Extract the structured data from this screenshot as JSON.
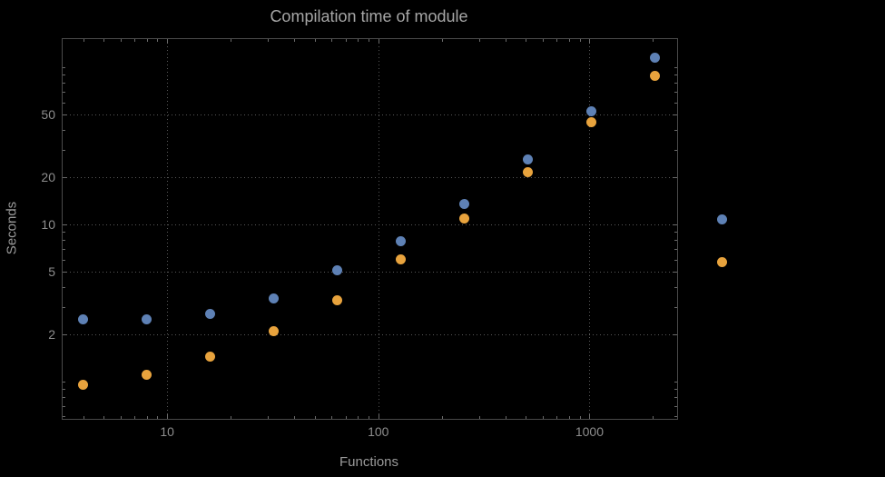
{
  "title": "Compilation time of module",
  "colors": {
    "background": "#000000",
    "frame": "#4a4a4a",
    "grid": "#585858",
    "tick": "#6a6a6a",
    "tick_label": "#8d8d8d",
    "axis_label": "#9a9a9a",
    "title": "#a6a6a6",
    "series_blue": "#5e81b5",
    "series_orange": "#e8a33d"
  },
  "chart_data": {
    "type": "scatter",
    "title": "Compilation time of module",
    "xlabel": "Functions",
    "ylabel": "Seconds",
    "x_scale": "log",
    "y_scale": "log",
    "xlim": [
      3.2,
      2600
    ],
    "ylim": [
      0.58,
      152
    ],
    "x_ticks": [
      10,
      100,
      1000
    ],
    "x_tick_labels": [
      "10",
      "100",
      "1000"
    ],
    "y_ticks": [
      2,
      5,
      10,
      20,
      50
    ],
    "y_tick_labels": [
      "2",
      "5",
      "10",
      "20",
      "50"
    ],
    "grid": "dotted",
    "x": [
      4,
      8,
      16,
      32,
      64,
      128,
      256,
      512,
      1024,
      2048
    ],
    "series": [
      {
        "name": "blue",
        "color": "#5e81b5",
        "values": [
          2.5,
          2.5,
          2.7,
          3.4,
          5.1,
          7.8,
          13.5,
          26,
          53,
          115
        ]
      },
      {
        "name": "orange",
        "color": "#e8a33d",
        "values": [
          0.95,
          1.1,
          1.45,
          2.1,
          3.3,
          6.0,
          11,
          21.5,
          45,
          89
        ]
      }
    ],
    "legend_markers": [
      {
        "series": "blue",
        "color": "#5e81b5",
        "y": 10.8
      },
      {
        "series": "orange",
        "color": "#e8a33d",
        "y": 5.8
      }
    ]
  }
}
